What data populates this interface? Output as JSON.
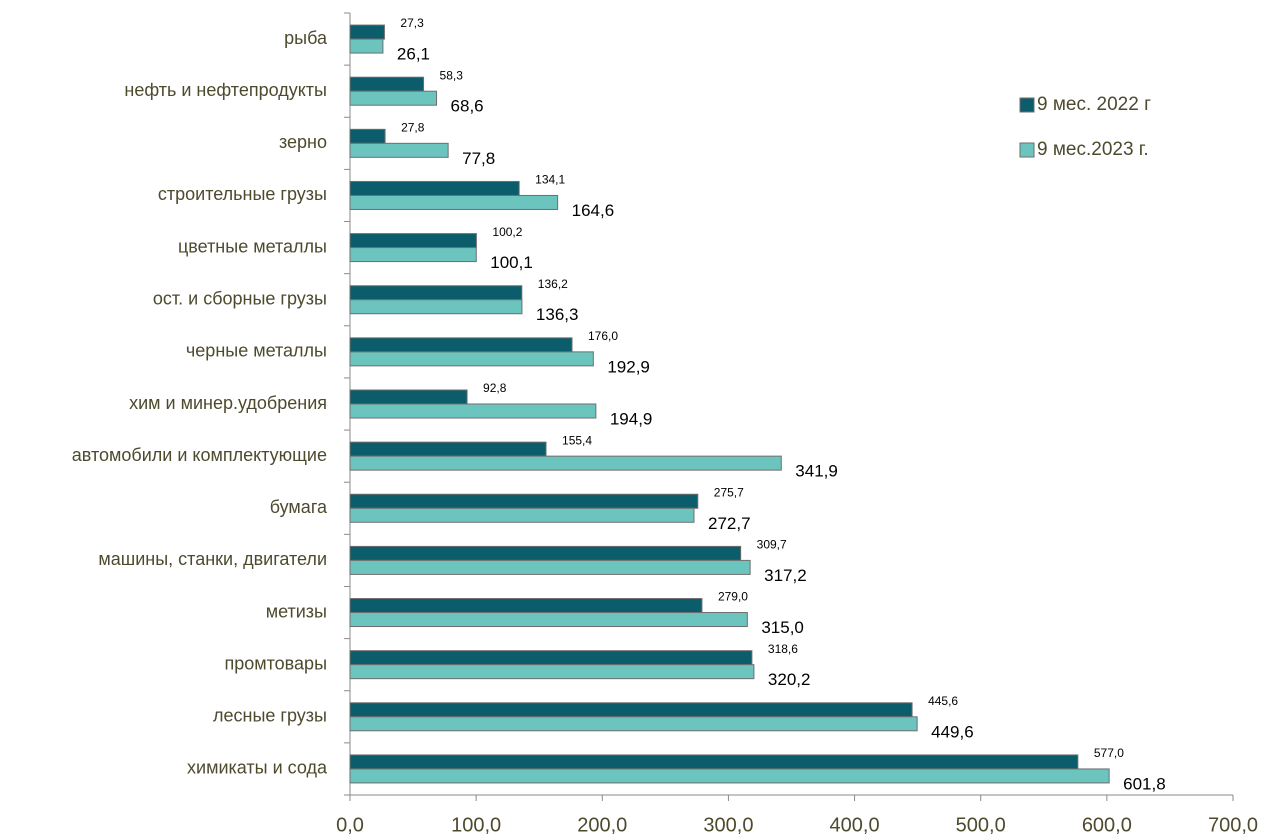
{
  "chart_data": {
    "type": "barh",
    "categories": [
      "рыба",
      "нефть и нефтепродукты",
      "зерно",
      "строительные грузы",
      "цветные металлы",
      "ост. и сборные грузы",
      "черные металлы",
      "хим и минер.удобрения",
      "автомобили и комплектующие",
      "бумага",
      "машины, станки, двигатели",
      "метизы",
      "промтовары",
      "лесные грузы",
      "химикаты и сода"
    ],
    "series": [
      {
        "name": "9 мес. 2022 г",
        "color": "#0b5d6b",
        "values": [
          27.3,
          58.3,
          27.8,
          134.1,
          100.2,
          136.2,
          176.0,
          92.8,
          155.4,
          275.7,
          309.7,
          279.0,
          318.6,
          445.6,
          577.0
        ],
        "value_labels": [
          "27,3",
          "58,3",
          "27,8",
          "134,1",
          "100,2",
          "136,2",
          "176,0",
          "92,8",
          "155,4",
          "275,7",
          "309,7",
          "279,0",
          "318,6",
          "445,6",
          "577,0"
        ]
      },
      {
        "name": "9 мес.2023 г.",
        "color": "#6cc4bf",
        "values": [
          26.1,
          68.6,
          77.8,
          164.6,
          100.1,
          136.3,
          192.9,
          194.9,
          341.9,
          272.7,
          317.2,
          315.0,
          320.2,
          449.6,
          601.8
        ],
        "value_labels": [
          "26,1",
          "68,6",
          "77,8",
          "164,6",
          "100,1",
          "136,3",
          "192,9",
          "194,9",
          "341,9",
          "272,7",
          "317,2",
          "315,0",
          "320,2",
          "449,6",
          "601,8"
        ]
      }
    ],
    "xlim": [
      0,
      700
    ],
    "xticks": [
      {
        "value": 0,
        "label": "0,0"
      },
      {
        "value": 100,
        "label": "100,0"
      },
      {
        "value": 200,
        "label": "200,0"
      },
      {
        "value": 300,
        "label": "300,0"
      },
      {
        "value": 400,
        "label": "400,0"
      },
      {
        "value": 500,
        "label": "500,0"
      },
      {
        "value": 600,
        "label": "600,0"
      },
      {
        "value": 700,
        "label": "700,0"
      }
    ],
    "legend": "top-right",
    "grid": false
  }
}
